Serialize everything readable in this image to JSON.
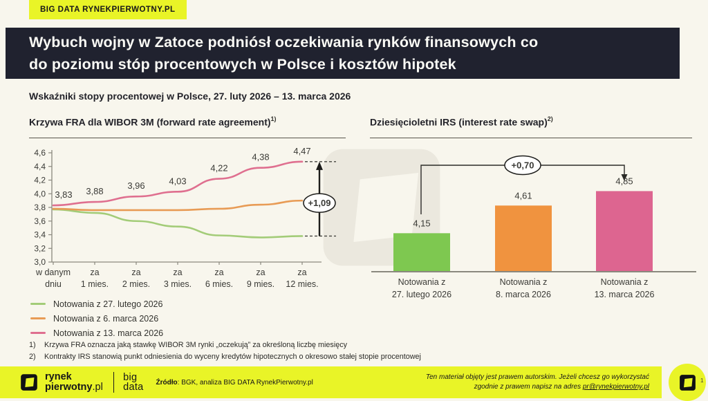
{
  "header": {
    "badge": "BIG DATA RYNEKPIERWOTNY.PL",
    "title_lines": [
      "Wybuch wojny w Zatoce podniósł oczekiwania rynków finansowych co",
      "do poziomu stóp procentowych w Polsce i kosztów hipotek"
    ],
    "subtitle": "Wskaźniki stopy procentowej w Polsce, 27. luty 2026 – 13. marca 2026"
  },
  "charts": {
    "fra": {
      "title": "Krzywa FRA dla WIBOR 3M (forward rate agreement)",
      "footnote_ref": "1)"
    },
    "irs": {
      "title": "Dziesięcioletni IRS (interest rate swap)",
      "footnote_ref": "2)"
    }
  },
  "chart_data": [
    {
      "type": "line",
      "title": "Krzywa FRA dla WIBOR 3M (forward rate agreement)",
      "ylim": [
        3.0,
        4.6
      ],
      "ytick_step": 0.2,
      "grid": false,
      "legend_position": "bottom-left",
      "categories": [
        [
          "w danym",
          "dniu"
        ],
        [
          "za",
          "1 mies."
        ],
        [
          "za",
          "2 mies."
        ],
        [
          "za",
          "3 mies."
        ],
        [
          "za",
          "6 mies."
        ],
        [
          "za",
          "9 mies."
        ],
        [
          "za",
          "12 mies."
        ]
      ],
      "series": [
        {
          "name": "Notowania z 27. lutego 2026",
          "color": "#a3cc78",
          "values": [
            3.77,
            3.72,
            3.6,
            3.52,
            3.39,
            3.36,
            3.38
          ],
          "labeled": false
        },
        {
          "name": "Notowania z 6. marca 2026",
          "color": "#e89b55",
          "values": [
            3.78,
            3.76,
            3.76,
            3.76,
            3.78,
            3.84,
            3.9
          ],
          "labeled": false
        },
        {
          "name": "Notowania z 13. marca 2026",
          "color": "#df6f8f",
          "values": [
            3.83,
            3.88,
            3.96,
            4.03,
            4.22,
            4.38,
            4.47
          ],
          "labeled": true
        }
      ],
      "annotation": {
        "delta_label": "+1,09",
        "from_series": 0,
        "to_series": 2
      }
    },
    {
      "type": "bar",
      "title": "Dziesięcioletni IRS (interest rate swap)",
      "categories": [
        [
          "Notowania z",
          "27. lutego 2026"
        ],
        [
          "Notowania z",
          "8. marca 2026"
        ],
        [
          "Notowania z",
          "13. marca 2026"
        ]
      ],
      "values": [
        4.15,
        4.61,
        4.85
      ],
      "colors": [
        "#7ec850",
        "#f0933f",
        "#dd6590"
      ],
      "annotation": {
        "delta_label": "+0,70",
        "from_bar": 0,
        "to_bar": 2
      }
    }
  ],
  "footnotes": [
    {
      "ref": "1)",
      "text": "Krzywa FRA oznacza jaką stawkę WIBOR 3M rynki „oczekują” za określoną liczbę miesięcy"
    },
    {
      "ref": "2)",
      "text": "Kontrakty IRS stanowią punkt odniesienia do wyceny kredytów hipotecznych o okresowo stałej stopie procentowej"
    }
  ],
  "footer": {
    "logo_line1": "rynek",
    "logo_line2_bold": "pierwotny",
    "logo_line2_suffix": ".pl",
    "bigdata_line1": "big",
    "bigdata_line2": "data",
    "source_label": "Źródło",
    "source_text": ": BGK, analiza BIG DATA RynekPierwotny.pl",
    "rights_line1": "Ten materiał objęty jest prawem autorskim. Jeżeli chcesz go wykorzystać",
    "rights_line2_prefix": "zgodnie z prawem napisz na adres ",
    "rights_email": "pr@rynekpierwotny.pl",
    "page_number": "1"
  },
  "colors": {
    "background": "#f8f6ed",
    "brand_yellow": "#e9f427",
    "title_bar": "#20222f",
    "axis": "#8a887e",
    "annotation_ink": "#1d1d1b"
  }
}
